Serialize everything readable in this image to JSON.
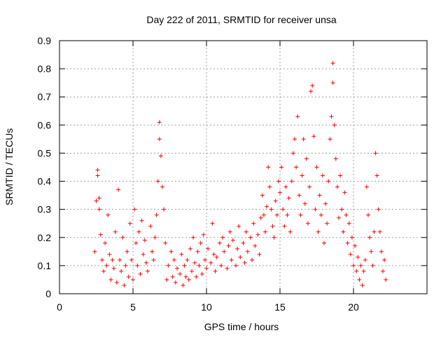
{
  "colors": {
    "marker": "#ff0000",
    "grid": "#a0a0a0",
    "axis": "#000000",
    "background": "#ffffff"
  },
  "chart_data": {
    "type": "scatter",
    "title": "Day 222 of 2011, SRMTID for receiver unsa",
    "xlabel": "GPS time / hours",
    "ylabel": "SRMTID / TECUs",
    "xlim": [
      0,
      25
    ],
    "ylim": [
      0,
      0.9
    ],
    "grid": true,
    "marker": "+",
    "x_ticks": [
      0,
      5,
      10,
      15,
      20
    ],
    "x_tick_labels": [
      "0",
      "5",
      "10",
      "15",
      "20"
    ],
    "y_ticks": [
      0,
      0.1,
      0.2,
      0.3,
      0.4,
      0.5,
      0.6,
      0.7,
      0.8,
      0.9
    ],
    "y_tick_labels": [
      "0",
      "0.1",
      "0.2",
      "0.3",
      "0.4",
      "0.5",
      "0.6",
      "0.7",
      "0.8",
      "0.9"
    ],
    "series": [
      {
        "name": "SRMTID",
        "points": [
          [
            2.4,
            0.15
          ],
          [
            2.5,
            0.33
          ],
          [
            2.6,
            0.44
          ],
          [
            2.6,
            0.42
          ],
          [
            2.7,
            0.34
          ],
          [
            2.7,
            0.3
          ],
          [
            2.8,
            0.21
          ],
          [
            2.9,
            0.12
          ],
          [
            3.0,
            0.08
          ],
          [
            3.1,
            0.18
          ],
          [
            3.2,
            0.1
          ],
          [
            3.3,
            0.28
          ],
          [
            3.4,
            0.14
          ],
          [
            3.5,
            0.05
          ],
          [
            3.6,
            0.12
          ],
          [
            3.7,
            0.09
          ],
          [
            3.8,
            0.22
          ],
          [
            3.9,
            0.04
          ],
          [
            4.0,
            0.37
          ],
          [
            4.1,
            0.12
          ],
          [
            4.2,
            0.08
          ],
          [
            4.3,
            0.2
          ],
          [
            4.4,
            0.03
          ],
          [
            4.5,
            0.1
          ],
          [
            4.6,
            0.15
          ],
          [
            4.7,
            0.06
          ],
          [
            4.8,
            0.25
          ],
          [
            4.9,
            0.12
          ],
          [
            5.0,
            0.05
          ],
          [
            5.1,
            0.3
          ],
          [
            5.2,
            0.18
          ],
          [
            5.3,
            0.1
          ],
          [
            5.4,
            0.22
          ],
          [
            5.5,
            0.07
          ],
          [
            5.6,
            0.26
          ],
          [
            5.7,
            0.14
          ],
          [
            5.8,
            0.19
          ],
          [
            5.9,
            0.11
          ],
          [
            6.0,
            0.08
          ],
          [
            6.2,
            0.24
          ],
          [
            6.3,
            0.15
          ],
          [
            6.4,
            0.12
          ],
          [
            6.5,
            0.2
          ],
          [
            6.6,
            0.28
          ],
          [
            6.7,
            0.4
          ],
          [
            6.8,
            0.55
          ],
          [
            6.8,
            0.61
          ],
          [
            6.9,
            0.49
          ],
          [
            7.0,
            0.38
          ],
          [
            7.1,
            0.3
          ],
          [
            7.2,
            0.18
          ],
          [
            7.3,
            0.05
          ],
          [
            7.4,
            0.1
          ],
          [
            7.6,
            0.15
          ],
          [
            7.7,
            0.06
          ],
          [
            7.8,
            0.12
          ],
          [
            7.9,
            0.04
          ],
          [
            8.0,
            0.09
          ],
          [
            8.2,
            0.07
          ],
          [
            8.3,
            0.14
          ],
          [
            8.4,
            0.03
          ],
          [
            8.5,
            0.1
          ],
          [
            8.6,
            0.06
          ],
          [
            8.7,
            0.12
          ],
          [
            8.8,
            0.05
          ],
          [
            8.9,
            0.16
          ],
          [
            9.0,
            0.08
          ],
          [
            9.1,
            0.2
          ],
          [
            9.2,
            0.11
          ],
          [
            9.3,
            0.06
          ],
          [
            9.4,
            0.15
          ],
          [
            9.5,
            0.1
          ],
          [
            9.6,
            0.18
          ],
          [
            9.7,
            0.07
          ],
          [
            9.8,
            0.21
          ],
          [
            9.9,
            0.12
          ],
          [
            10.0,
            0.09
          ],
          [
            10.1,
            0.16
          ],
          [
            10.3,
            0.11
          ],
          [
            10.4,
            0.25
          ],
          [
            10.5,
            0.14
          ],
          [
            10.6,
            0.08
          ],
          [
            10.7,
            0.13
          ],
          [
            10.9,
            0.18
          ],
          [
            11.0,
            0.1
          ],
          [
            11.1,
            0.2
          ],
          [
            11.2,
            0.15
          ],
          [
            11.4,
            0.09
          ],
          [
            11.5,
            0.17
          ],
          [
            11.6,
            0.22
          ],
          [
            11.7,
            0.12
          ],
          [
            11.8,
            0.19
          ],
          [
            12.0,
            0.1
          ],
          [
            12.1,
            0.16
          ],
          [
            12.2,
            0.24
          ],
          [
            12.3,
            0.13
          ],
          [
            12.5,
            0.18
          ],
          [
            12.6,
            0.11
          ],
          [
            12.7,
            0.22
          ],
          [
            12.8,
            0.15
          ],
          [
            13.0,
            0.2
          ],
          [
            13.1,
            0.12
          ],
          [
            13.2,
            0.25
          ],
          [
            13.3,
            0.17
          ],
          [
            13.5,
            0.21
          ],
          [
            13.6,
            0.14
          ],
          [
            13.7,
            0.27
          ],
          [
            13.8,
            0.35
          ],
          [
            13.9,
            0.28
          ],
          [
            14.0,
            0.22
          ],
          [
            14.1,
            0.31
          ],
          [
            14.2,
            0.45
          ],
          [
            14.3,
            0.38
          ],
          [
            14.4,
            0.3
          ],
          [
            14.5,
            0.24
          ],
          [
            14.6,
            0.2
          ],
          [
            14.7,
            0.33
          ],
          [
            14.8,
            0.28
          ],
          [
            14.9,
            0.4
          ],
          [
            15.0,
            0.36
          ],
          [
            15.1,
            0.45
          ],
          [
            15.2,
            0.3
          ],
          [
            15.3,
            0.24
          ],
          [
            15.4,
            0.38
          ],
          [
            15.5,
            0.28
          ],
          [
            15.6,
            0.34
          ],
          [
            15.7,
            0.22
          ],
          [
            15.8,
            0.4
          ],
          [
            15.9,
            0.5
          ],
          [
            16.0,
            0.55
          ],
          [
            16.1,
            0.45
          ],
          [
            16.2,
            0.63
          ],
          [
            16.3,
            0.35
          ],
          [
            16.4,
            0.28
          ],
          [
            16.5,
            0.42
          ],
          [
            16.6,
            0.55
          ],
          [
            16.7,
            0.32
          ],
          [
            16.8,
            0.48
          ],
          [
            16.9,
            0.25
          ],
          [
            17.0,
            0.38
          ],
          [
            17.1,
            0.72
          ],
          [
            17.2,
            0.74
          ],
          [
            17.3,
            0.56
          ],
          [
            17.4,
            0.3
          ],
          [
            17.5,
            0.45
          ],
          [
            17.6,
            0.22
          ],
          [
            17.7,
            0.35
          ],
          [
            17.8,
            0.28
          ],
          [
            17.9,
            0.42
          ],
          [
            18.0,
            0.18
          ],
          [
            18.1,
            0.32
          ],
          [
            18.2,
            0.25
          ],
          [
            18.3,
            0.4
          ],
          [
            18.4,
            0.55
          ],
          [
            18.5,
            0.63
          ],
          [
            18.6,
            0.75
          ],
          [
            18.6,
            0.82
          ],
          [
            18.7,
            0.6
          ],
          [
            18.8,
            0.48
          ],
          [
            18.9,
            0.38
          ],
          [
            19.0,
            0.27
          ],
          [
            19.1,
            0.42
          ],
          [
            19.2,
            0.3
          ],
          [
            19.3,
            0.22
          ],
          [
            19.4,
            0.36
          ],
          [
            19.5,
            0.28
          ],
          [
            19.6,
            0.18
          ],
          [
            19.7,
            0.25
          ],
          [
            19.8,
            0.14
          ],
          [
            19.9,
            0.2
          ],
          [
            20.0,
            0.1
          ],
          [
            20.1,
            0.17
          ],
          [
            20.2,
            0.08
          ],
          [
            20.3,
            0.13
          ],
          [
            20.4,
            0.05
          ],
          [
            20.5,
            0.1
          ],
          [
            20.6,
            0.03
          ],
          [
            20.7,
            0.08
          ],
          [
            20.8,
            0.12
          ],
          [
            20.9,
            0.38
          ],
          [
            21.0,
            0.28
          ],
          [
            21.1,
            0.2
          ],
          [
            21.2,
            0.15
          ],
          [
            21.3,
            0.1
          ],
          [
            21.4,
            0.22
          ],
          [
            21.5,
            0.5
          ],
          [
            21.6,
            0.42
          ],
          [
            21.7,
            0.3
          ],
          [
            21.8,
            0.22
          ],
          [
            21.9,
            0.15
          ],
          [
            22.0,
            0.08
          ],
          [
            22.1,
            0.12
          ],
          [
            22.2,
            0.05
          ]
        ]
      }
    ]
  }
}
